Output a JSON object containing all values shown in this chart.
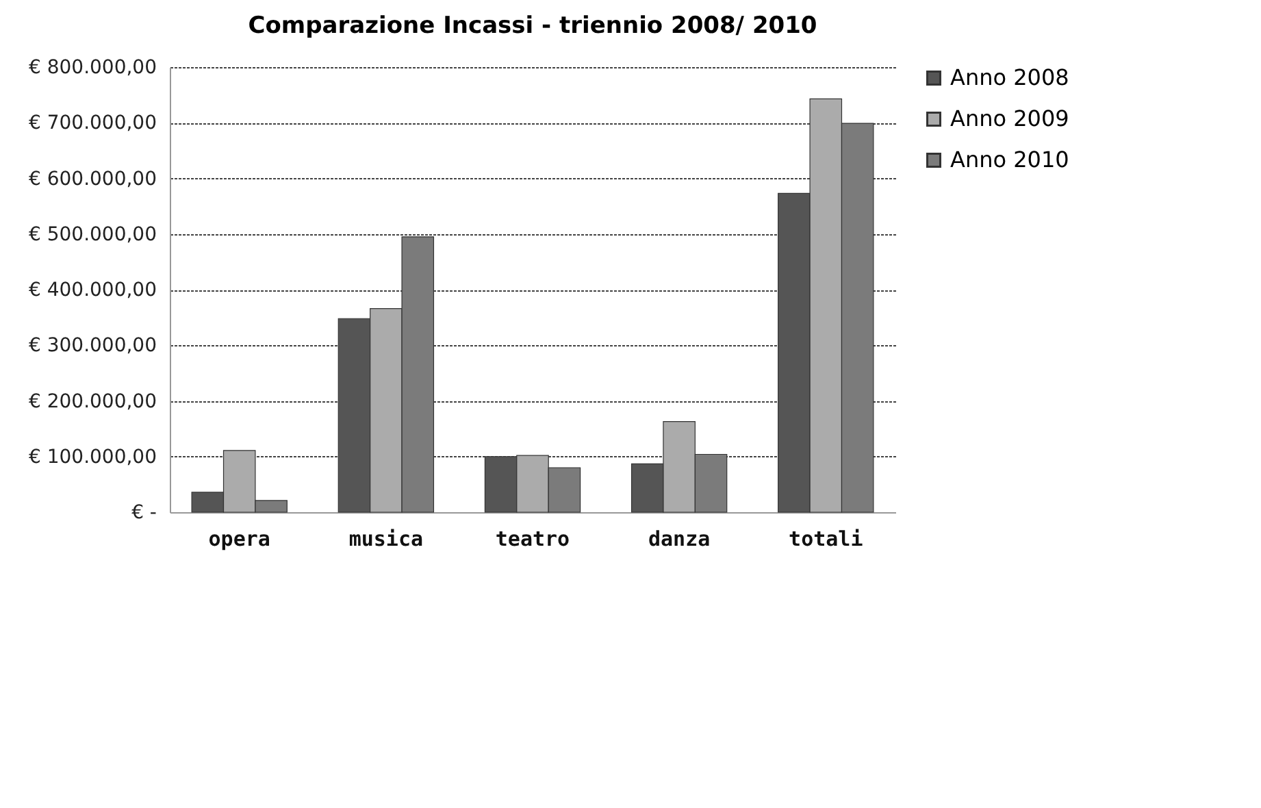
{
  "chart_data": {
    "type": "bar",
    "title": "Comparazione Incassi - triennio 2008/ 2010",
    "categories": [
      "opera",
      "musica",
      "teatro",
      "danza",
      "totali"
    ],
    "series": [
      {
        "name": "Anno 2008",
        "color": "#555555",
        "values": [
          36000,
          348000,
          100000,
          87000,
          573000
        ]
      },
      {
        "name": "Anno 2009",
        "color": "#ababab",
        "values": [
          111000,
          366000,
          102000,
          163000,
          743000
        ]
      },
      {
        "name": "Anno 2010",
        "color": "#7b7b7b",
        "values": [
          21000,
          495000,
          80000,
          104000,
          699000
        ]
      }
    ],
    "ylim": [
      0,
      800000
    ],
    "yticks": [
      {
        "value": 0,
        "label": "€ -"
      },
      {
        "value": 100000,
        "label": "€ 100.000,00"
      },
      {
        "value": 200000,
        "label": "€ 200.000,00"
      },
      {
        "value": 300000,
        "label": "€ 300.000,00"
      },
      {
        "value": 400000,
        "label": "€ 400.000,00"
      },
      {
        "value": 500000,
        "label": "€ 500.000,00"
      },
      {
        "value": 600000,
        "label": "€ 600.000,00"
      },
      {
        "value": 700000,
        "label": "€ 700.000,00"
      },
      {
        "value": 800000,
        "label": "€ 800.000,00"
      }
    ],
    "grid": "y",
    "legend": "right"
  }
}
